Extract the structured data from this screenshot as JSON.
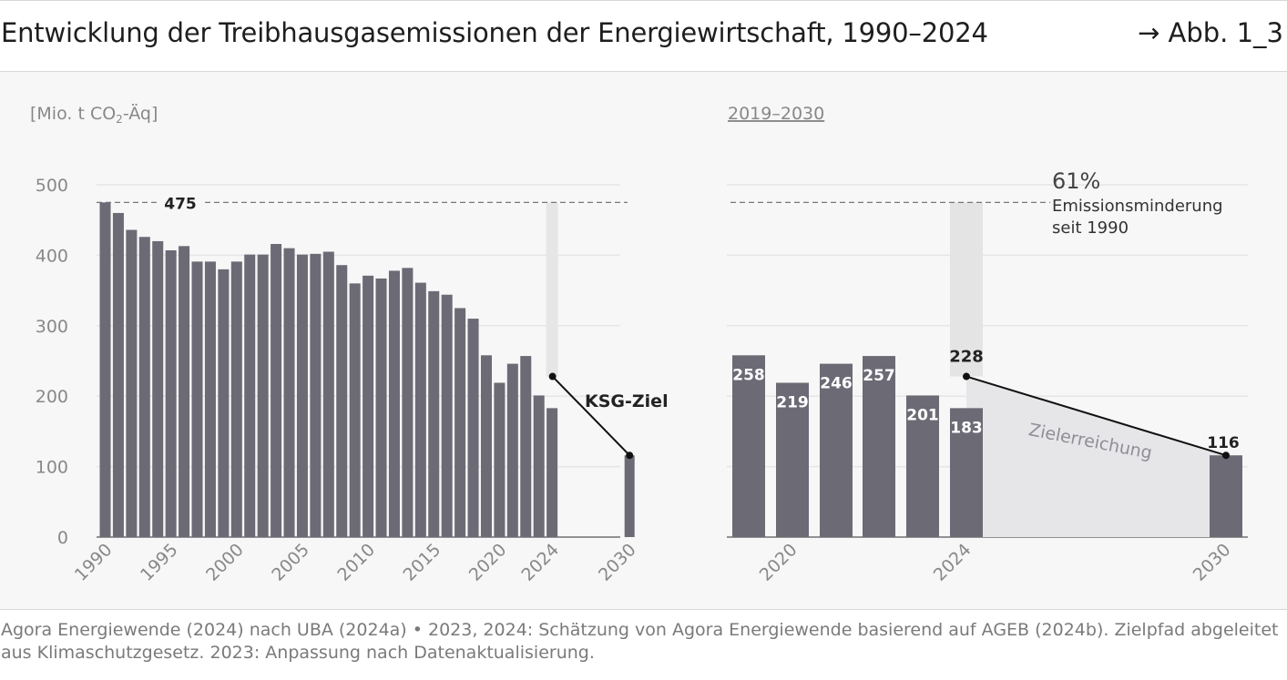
{
  "header": {
    "title": "Entwicklung der Treibhausgasemissionen der Energiewirtschaft, 1990–2024",
    "figure_ref": "→ Abb. 1_3"
  },
  "footer": {
    "source": "Agora Energiewende (2024) nach UBA (2024a) • 2023, 2024: Schätzung von Agora Energiewende basierend auf AGEB (2024b). Zielpfad abgeleitet aus Klimaschutzgesetz. 2023: Anpassung nach Datenaktualisierung."
  },
  "colors": {
    "bar": "#6b6a75",
    "grid": "#e6e6e6",
    "highlight": "#e6e6e6",
    "target_area": "#e6e6e9",
    "text": "#222222",
    "muted": "#888888"
  },
  "chart_data": [
    {
      "type": "bar",
      "ylabel_main": "[Mio. t CO",
      "ylabel_sub": "2",
      "ylabel_tail": "-Äq]",
      "ylim": [
        0,
        500
      ],
      "yticks": [
        "0",
        "100",
        "200",
        "300",
        "400",
        "500"
      ],
      "xtick_labels": [
        "1990",
        "1995",
        "2000",
        "2005",
        "2010",
        "2015",
        "2020",
        "2024",
        "2030"
      ],
      "years": [
        1990,
        1991,
        1992,
        1993,
        1994,
        1995,
        1996,
        1997,
        1998,
        1999,
        2000,
        2001,
        2002,
        2003,
        2004,
        2005,
        2006,
        2007,
        2008,
        2009,
        2010,
        2011,
        2012,
        2013,
        2014,
        2015,
        2016,
        2017,
        2018,
        2019,
        2020,
        2021,
        2022,
        2023,
        2024
      ],
      "values": [
        475,
        460,
        436,
        426,
        420,
        407,
        413,
        391,
        391,
        380,
        391,
        401,
        401,
        416,
        410,
        401,
        402,
        405,
        386,
        360,
        371,
        367,
        378,
        382,
        361,
        349,
        344,
        325,
        310,
        258,
        219,
        246,
        257,
        201,
        183
      ],
      "target": {
        "year": 2030,
        "value": 116
      },
      "reference_value": 475,
      "reference_label": "475",
      "target_line_label": "KSG-Ziel",
      "marker_2024": 228,
      "grid": true
    },
    {
      "type": "bar",
      "title": "2019–2030",
      "ylim": [
        0,
        500
      ],
      "categories": [
        "2019",
        "2020",
        "2021",
        "2022",
        "2023",
        "2024",
        "2030"
      ],
      "values": [
        258,
        219,
        246,
        257,
        201,
        183,
        116
      ],
      "value_labels": [
        "258",
        "219",
        "246",
        "257",
        "201",
        "183",
        "116"
      ],
      "xtick_labels": [
        "2020",
        "2024",
        "2030"
      ],
      "path_start_label": "228",
      "path_start": 228,
      "path_end": 116,
      "area_label": "Zielerreichung",
      "reduction_pct": "61%",
      "reduction_line1": "Emissionsminderung",
      "reduction_line2": "seit 1990",
      "reference_value": 475,
      "grid": true
    }
  ]
}
